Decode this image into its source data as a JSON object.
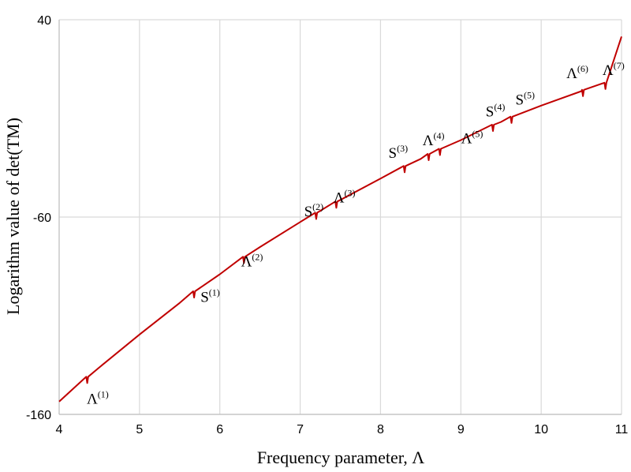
{
  "chart_data": {
    "type": "line",
    "title": "",
    "xlabel": "Frequency parameter, Λ",
    "ylabel": "Logarithm value of  det(TM)",
    "xlim": [
      4,
      11
    ],
    "ylim": [
      -160,
      40
    ],
    "x_ticks": [
      "4",
      "5",
      "6",
      "7",
      "8",
      "9",
      "10",
      "11"
    ],
    "y_ticks": [
      "40",
      "-60",
      "-160"
    ],
    "y_tick_values": [
      40,
      -60,
      -160
    ],
    "grid": true,
    "legend": "none",
    "line_color": "#C00000",
    "series": [
      {
        "values": [
          {
            "x": 4.0,
            "y": -153.5
          },
          {
            "x": 4.35,
            "y": -141.3
          },
          {
            "x": 4.5,
            "y": -136.2
          },
          {
            "x": 5.0,
            "y": -119.5
          },
          {
            "x": 5.5,
            "y": -103.5
          },
          {
            "x": 5.68,
            "y": -98.0
          },
          {
            "x": 6.0,
            "y": -89.0
          },
          {
            "x": 6.3,
            "y": -80.5
          },
          {
            "x": 6.5,
            "y": -75.2
          },
          {
            "x": 7.0,
            "y": -62.5
          },
          {
            "x": 7.2,
            "y": -58.2
          },
          {
            "x": 7.45,
            "y": -52.5
          },
          {
            "x": 7.5,
            "y": -51.3
          },
          {
            "x": 8.0,
            "y": -40.5
          },
          {
            "x": 8.3,
            "y": -34.5
          },
          {
            "x": 8.5,
            "y": -30.5
          },
          {
            "x": 8.6,
            "y": -28.4
          },
          {
            "x": 8.74,
            "y": -25.8
          },
          {
            "x": 9.0,
            "y": -21.0
          },
          {
            "x": 9.4,
            "y": -13.6
          },
          {
            "x": 9.5,
            "y": -11.8
          },
          {
            "x": 9.63,
            "y": -9.5
          },
          {
            "x": 10.0,
            "y": -3.5
          },
          {
            "x": 10.5,
            "y": 3.8
          },
          {
            "x": 10.52,
            "y": 4.1
          },
          {
            "x": 10.8,
            "y": 7.7
          },
          {
            "x": 11.0,
            "y": 31.5
          }
        ]
      }
    ],
    "dips": [
      4.35,
      5.68,
      6.3,
      7.2,
      7.45,
      8.3,
      8.6,
      8.74,
      9.4,
      9.63,
      10.52,
      10.8
    ],
    "annotations": [
      {
        "base": "Λ",
        "sup": "(1)",
        "x": 4.48,
        "y": -154.5
      },
      {
        "base": "S",
        "sup": "(1)",
        "x": 5.88,
        "y": -103.0
      },
      {
        "base": "Λ",
        "sup": "(2)",
        "x": 6.4,
        "y": -85.0
      },
      {
        "base": "S",
        "sup": "(2)",
        "x": 7.17,
        "y": -59.5
      },
      {
        "base": "Λ",
        "sup": "(3)",
        "x": 7.55,
        "y": -52.5
      },
      {
        "base": "S",
        "sup": "(3)",
        "x": 8.22,
        "y": -30.0
      },
      {
        "base": "Λ",
        "sup": "(4)",
        "x": 8.66,
        "y": -23.5
      },
      {
        "base": "Λ",
        "sup": "(5)",
        "x": 9.14,
        "y": -22.5
      },
      {
        "base": "S",
        "sup": "(4)",
        "x": 9.43,
        "y": -9.0
      },
      {
        "base": "S",
        "sup": "(5)",
        "x": 9.8,
        "y": -3.0
      },
      {
        "base": "Λ",
        "sup": "(6)",
        "x": 10.45,
        "y": 10.5
      },
      {
        "base": "Λ",
        "sup": "(7)",
        "x": 10.9,
        "y": 12.0
      }
    ]
  }
}
